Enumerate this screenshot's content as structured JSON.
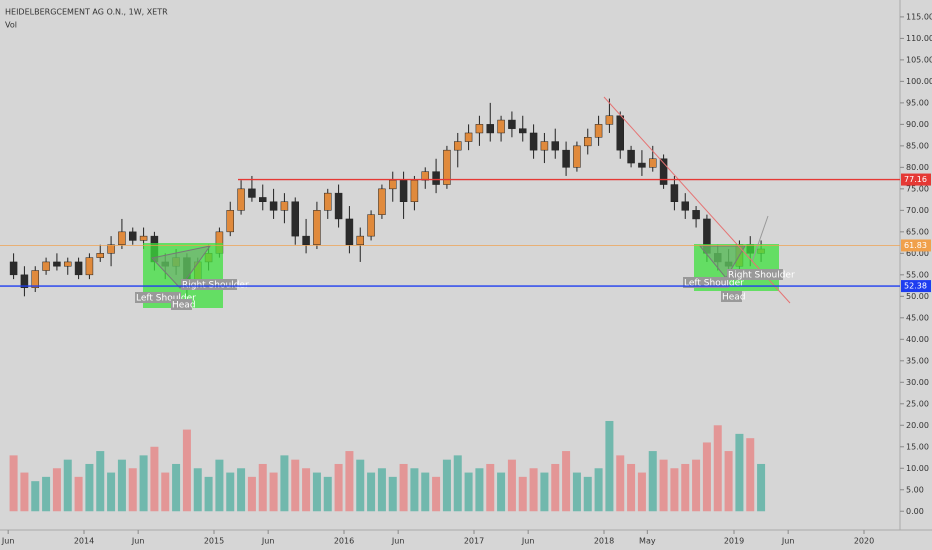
{
  "chart_data": {
    "type": "candlestick",
    "title": "HEIDELBERGCEMENT AG O.N., 1W, XETR",
    "subtitle": "Vol",
    "x": [
      "2013-06",
      "2013-07",
      "2013-08",
      "2013-09",
      "2013-10",
      "2013-11",
      "2013-12",
      "2014-01",
      "2014-02",
      "2014-03",
      "2014-04",
      "2014-05",
      "2014-06",
      "2014-07",
      "2014-08",
      "2014-09",
      "2014-10",
      "2014-11",
      "2014-12",
      "2015-01",
      "2015-02",
      "2015-03",
      "2015-04",
      "2015-05",
      "2015-06",
      "2015-07",
      "2015-08",
      "2015-09",
      "2015-10",
      "2015-11",
      "2015-12",
      "2016-01",
      "2016-02",
      "2016-03",
      "2016-04",
      "2016-05",
      "2016-06",
      "2016-07",
      "2016-08",
      "2016-09",
      "2016-10",
      "2016-11",
      "2016-12",
      "2017-01",
      "2017-02",
      "2017-03",
      "2017-04",
      "2017-05",
      "2017-06",
      "2017-07",
      "2017-08",
      "2017-09",
      "2017-10",
      "2017-11",
      "2017-12",
      "2018-01",
      "2018-02",
      "2018-03",
      "2018-04",
      "2018-05",
      "2018-06",
      "2018-07",
      "2018-08",
      "2018-09",
      "2018-10",
      "2018-11",
      "2018-12",
      "2019-01",
      "2019-02",
      "2019-03"
    ],
    "open": [
      58,
      55,
      52,
      56,
      58,
      57,
      58,
      55,
      59,
      60,
      62,
      65,
      63,
      64,
      58,
      57,
      59,
      53,
      58,
      60,
      65,
      70,
      75,
      73,
      72,
      70,
      72,
      64,
      62,
      70,
      74,
      68,
      62,
      64,
      69,
      75,
      77,
      72,
      77,
      79,
      76,
      84,
      86,
      88,
      90,
      88,
      91,
      89,
      88,
      84,
      86,
      84,
      80,
      85,
      87,
      90,
      92,
      84,
      81,
      80,
      82,
      76,
      72,
      70,
      68,
      60,
      58,
      57,
      62,
      60
    ],
    "high": [
      60,
      57,
      57,
      59,
      60,
      59,
      59,
      60,
      62,
      64,
      68,
      66,
      66,
      65,
      60,
      61,
      60,
      59,
      62,
      66,
      72,
      77,
      78,
      76,
      75,
      74,
      73,
      68,
      72,
      75,
      76,
      71,
      66,
      70,
      76,
      79,
      79,
      78,
      80,
      82,
      85,
      88,
      90,
      92,
      95,
      92,
      93,
      92,
      90,
      88,
      89,
      86,
      86,
      89,
      92,
      96,
      93,
      85,
      84,
      85,
      83,
      78,
      74,
      71,
      69,
      62,
      61,
      63,
      64,
      63
    ],
    "low": [
      54,
      50,
      51,
      55,
      56,
      55,
      54,
      54,
      58,
      57,
      61,
      62,
      61,
      56,
      54,
      55,
      50,
      53,
      56,
      59,
      64,
      69,
      72,
      70,
      68,
      67,
      62,
      60,
      61,
      68,
      66,
      60,
      58,
      63,
      68,
      72,
      68,
      70,
      75,
      74,
      75,
      80,
      84,
      85,
      86,
      86,
      87,
      86,
      82,
      81,
      82,
      78,
      79,
      83,
      85,
      88,
      82,
      80,
      78,
      79,
      75,
      70,
      68,
      66,
      58,
      56,
      55,
      56,
      57,
      58
    ],
    "close": [
      55,
      52,
      56,
      58,
      57,
      58,
      55,
      59,
      60,
      62,
      65,
      63,
      64,
      58,
      57,
      59,
      53,
      58,
      60,
      65,
      70,
      75,
      73,
      72,
      70,
      72,
      64,
      62,
      70,
      74,
      68,
      62,
      64,
      69,
      75,
      77,
      72,
      77,
      79,
      76,
      84,
      86,
      88,
      90,
      88,
      91,
      89,
      88,
      84,
      86,
      84,
      80,
      85,
      87,
      90,
      92,
      84,
      81,
      80,
      82,
      76,
      72,
      70,
      68,
      60,
      58,
      57,
      62,
      60,
      61
    ],
    "volume": [
      13,
      9,
      7,
      8,
      10,
      12,
      8,
      11,
      14,
      9,
      12,
      10,
      13,
      15,
      9,
      11,
      19,
      10,
      8,
      12,
      9,
      10,
      8,
      11,
      9,
      13,
      12,
      10,
      9,
      8,
      11,
      14,
      12,
      9,
      10,
      8,
      11,
      10,
      9,
      8,
      12,
      13,
      9,
      10,
      11,
      9,
      12,
      8,
      10,
      9,
      11,
      14,
      9,
      8,
      10,
      21,
      13,
      11,
      9,
      14,
      12,
      10,
      11,
      12,
      16,
      20,
      14,
      18,
      17,
      11
    ],
    "up_color": "#e08a3c",
    "down_color": "#2b2b2b",
    "volume_up_color": "#5fb3a6",
    "volume_down_color": "#e58b8b",
    "ylim": [
      -2.5,
      118
    ],
    "yticks": [
      {
        "value": 0,
        "label": "0.00"
      },
      {
        "value": 5,
        "label": "5.00"
      },
      {
        "value": 10,
        "label": "10.00"
      },
      {
        "value": 15,
        "label": "15.00"
      },
      {
        "value": 20,
        "label": "20.00"
      },
      {
        "value": 25,
        "label": "25.00"
      },
      {
        "value": 30,
        "label": "30.00"
      },
      {
        "value": 35,
        "label": "35.00"
      },
      {
        "value": 40,
        "label": "40.00"
      },
      {
        "value": 45,
        "label": "45.00"
      },
      {
        "value": 50,
        "label": "50.00"
      },
      {
        "value": 55,
        "label": "55.00"
      },
      {
        "value": 60,
        "label": "60.00"
      },
      {
        "value": 65,
        "label": "65.00"
      },
      {
        "value": 70,
        "label": "70.00"
      },
      {
        "value": 75,
        "label": "75.00"
      },
      {
        "value": 80,
        "label": "80.00"
      },
      {
        "value": 85,
        "label": "85.00"
      },
      {
        "value": 90,
        "label": "90.00"
      },
      {
        "value": 95,
        "label": "95.00"
      },
      {
        "value": 100,
        "label": "100.00"
      },
      {
        "value": 105,
        "label": "105.00"
      },
      {
        "value": 110,
        "label": "110.00"
      },
      {
        "value": 115,
        "label": "115.00"
      }
    ],
    "xticks": [
      {
        "value": "2013-06",
        "label": "Jun"
      },
      {
        "value": "2014-01",
        "label": "2014"
      },
      {
        "value": "2014-06",
        "label": "Jun"
      },
      {
        "value": "2015-01",
        "label": "2015"
      },
      {
        "value": "2015-06",
        "label": "Jun"
      },
      {
        "value": "2016-01",
        "label": "2016"
      },
      {
        "value": "2016-06",
        "label": "Jun"
      },
      {
        "value": "2017-01",
        "label": "2017"
      },
      {
        "value": "2017-06",
        "label": "Jun"
      },
      {
        "value": "2018-01",
        "label": "2018"
      },
      {
        "value": "2018-05",
        "label": "May"
      },
      {
        "value": "2019-01",
        "label": "2019"
      },
      {
        "value": "2019-06",
        "label": "Jun"
      },
      {
        "value": "2020-01",
        "label": "2020"
      }
    ],
    "hlines": [
      {
        "value": 77.16,
        "color": "#e53935"
      },
      {
        "value": 61.83,
        "color": "#f0a04b"
      },
      {
        "value": 52.38,
        "color": "#1e3df0"
      }
    ],
    "annotations": [
      "Left Shoulder",
      "Head",
      "Right Shoulder",
      "Left Shoulder",
      "Head",
      "Right Shoulder"
    ]
  }
}
